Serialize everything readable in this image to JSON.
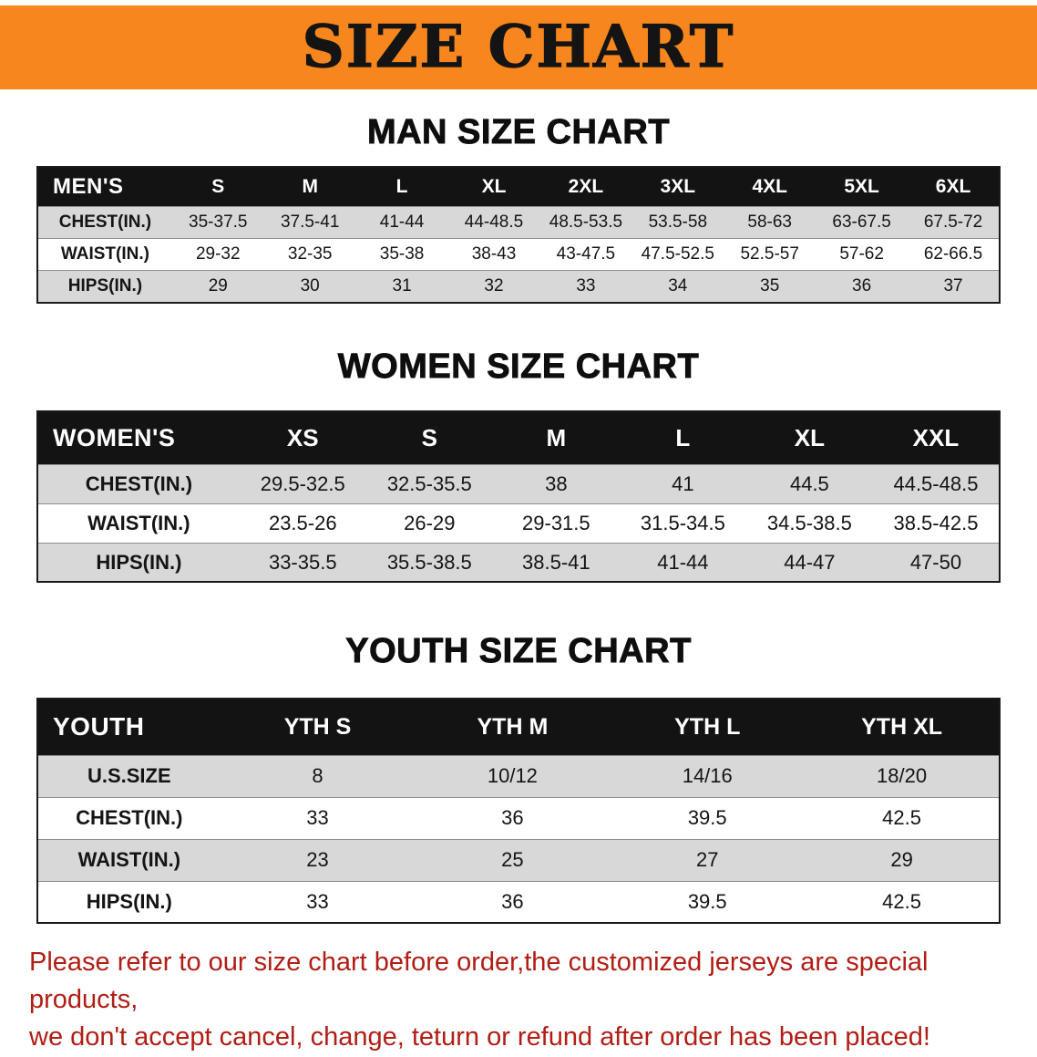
{
  "banner": {
    "title": "SIZE CHART"
  },
  "charts": [
    {
      "heading": "MAN SIZE CHART",
      "corner": "MEN'S",
      "columns": [
        "S",
        "M",
        "L",
        "XL",
        "2XL",
        "3XL",
        "4XL",
        "5XL",
        "6XL"
      ],
      "rows": [
        {
          "label": "CHEST(IN.)",
          "values": [
            "35-37.5",
            "37.5-41",
            "41-44",
            "44-48.5",
            "48.5-53.5",
            "53.5-58",
            "58-63",
            "63-67.5",
            "67.5-72"
          ]
        },
        {
          "label": "WAIST(IN.)",
          "values": [
            "29-32",
            "32-35",
            "35-38",
            "38-43",
            "43-47.5",
            "47.5-52.5",
            "52.5-57",
            "57-62",
            "62-66.5"
          ]
        },
        {
          "label": "HIPS(IN.)",
          "values": [
            "29",
            "30",
            "31",
            "32",
            "33",
            "34",
            "35",
            "36",
            "37"
          ]
        }
      ]
    },
    {
      "heading": "WOMEN SIZE CHART",
      "corner": "WOMEN'S",
      "columns": [
        "XS",
        "S",
        "M",
        "L",
        "XL",
        "XXL"
      ],
      "rows": [
        {
          "label": "CHEST(IN.)",
          "values": [
            "29.5-32.5",
            "32.5-35.5",
            "38",
            "41",
            "44.5",
            "44.5-48.5"
          ]
        },
        {
          "label": "WAIST(IN.)",
          "values": [
            "23.5-26",
            "26-29",
            "29-31.5",
            "31.5-34.5",
            "34.5-38.5",
            "38.5-42.5"
          ]
        },
        {
          "label": "HIPS(IN.)",
          "values": [
            "33-35.5",
            "35.5-38.5",
            "38.5-41",
            "41-44",
            "44-47",
            "47-50"
          ]
        }
      ]
    },
    {
      "heading": "YOUTH SIZE CHART",
      "corner": "YOUTH",
      "columns": [
        "YTH S",
        "YTH M",
        "YTH L",
        "YTH XL"
      ],
      "rows": [
        {
          "label": "U.S.SIZE",
          "values": [
            "8",
            "10/12",
            "14/16",
            "18/20"
          ]
        },
        {
          "label": "CHEST(IN.)",
          "values": [
            "33",
            "36",
            "39.5",
            "42.5"
          ]
        },
        {
          "label": "WAIST(IN.)",
          "values": [
            "23",
            "25",
            "27",
            "29"
          ]
        },
        {
          "label": "HIPS(IN.)",
          "values": [
            "33",
            "36",
            "39.5",
            "42.5"
          ]
        }
      ]
    }
  ],
  "footer": {
    "line1": "Please refer to our size chart before order,the customized jerseys are special products,",
    "line2": "we don't accept cancel, change, teturn or refund after order has been placed!"
  },
  "colors": {
    "banner_bg": "#f6861d",
    "header_bg": "#131313",
    "row_alt": "#d8d8d8",
    "footer_red": "#b01e15"
  }
}
